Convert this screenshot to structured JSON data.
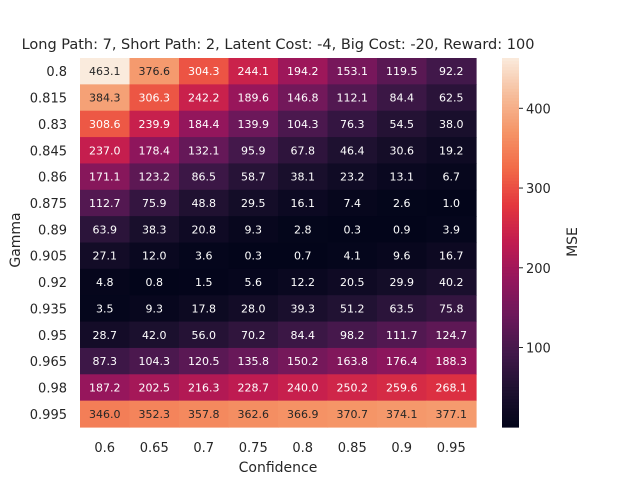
{
  "chart_data": {
    "type": "heatmap",
    "title": "Long Path: 7, Short Path: 2, Latent Cost: -4, Big Cost: -20, Reward: 100",
    "xlabel": "Confidence",
    "ylabel": "Gamma",
    "x": [
      "0.6",
      "0.65",
      "0.7",
      "0.75",
      "0.8",
      "0.85",
      "0.9",
      "0.95"
    ],
    "y": [
      "0.8",
      "0.815",
      "0.83",
      "0.845",
      "0.86",
      "0.875",
      "0.89",
      "0.905",
      "0.92",
      "0.935",
      "0.95",
      "0.965",
      "0.98",
      "0.995"
    ],
    "values": [
      [
        463.1,
        376.6,
        304.3,
        244.1,
        194.2,
        153.1,
        119.5,
        92.2
      ],
      [
        384.3,
        306.3,
        242.2,
        189.6,
        146.8,
        112.1,
        84.4,
        62.5
      ],
      [
        308.6,
        239.9,
        184.4,
        139.9,
        104.3,
        76.3,
        54.5,
        38.0
      ],
      [
        237.0,
        178.4,
        132.1,
        95.9,
        67.8,
        46.4,
        30.6,
        19.2
      ],
      [
        171.1,
        123.2,
        86.5,
        58.7,
        38.1,
        23.2,
        13.1,
        6.7
      ],
      [
        112.7,
        75.9,
        48.8,
        29.5,
        16.1,
        7.4,
        2.6,
        1.0
      ],
      [
        63.9,
        38.3,
        20.8,
        9.3,
        2.8,
        0.3,
        0.9,
        3.9
      ],
      [
        27.1,
        12.0,
        3.6,
        0.3,
        0.7,
        4.1,
        9.6,
        16.7
      ],
      [
        4.8,
        0.8,
        1.5,
        5.6,
        12.2,
        20.5,
        29.9,
        40.2
      ],
      [
        3.5,
        9.3,
        17.8,
        28.0,
        39.3,
        51.2,
        63.5,
        75.8
      ],
      [
        28.7,
        42.0,
        56.0,
        70.2,
        84.4,
        98.2,
        111.7,
        124.7
      ],
      [
        87.3,
        104.3,
        120.5,
        135.8,
        150.2,
        163.8,
        176.4,
        188.3
      ],
      [
        187.2,
        202.5,
        216.3,
        228.7,
        240.0,
        250.2,
        259.6,
        268.1
      ],
      [
        346.0,
        352.3,
        357.8,
        362.6,
        366.9,
        370.7,
        374.1,
        377.1
      ]
    ],
    "colorbar": {
      "label": "MSE",
      "range": [
        0.3,
        463.1
      ],
      "ticks": [
        100,
        200,
        300,
        400
      ],
      "colormap": "rocket"
    },
    "grid": false
  }
}
